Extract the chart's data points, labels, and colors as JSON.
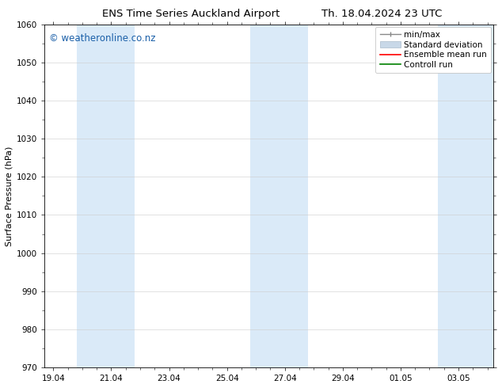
{
  "title_left": "ENS Time Series Auckland Airport",
  "title_right": "Th. 18.04.2024 23 UTC",
  "ylabel": "Surface Pressure (hPa)",
  "ylim": [
    970,
    1060
  ],
  "yticks": [
    970,
    980,
    990,
    1000,
    1010,
    1020,
    1030,
    1040,
    1050,
    1060
  ],
  "xtick_labels": [
    "19.04",
    "21.04",
    "23.04",
    "25.04",
    "27.04",
    "29.04",
    "01.05",
    "03.05"
  ],
  "xtick_positions": [
    0,
    2,
    4,
    6,
    8,
    10,
    12,
    14
  ],
  "x_min": -0.3,
  "x_max": 15.2,
  "watermark": "© weatheronline.co.nz",
  "watermark_color": "#1a5fa8",
  "bg_color": "#ffffff",
  "plot_bg_color": "#ffffff",
  "shaded_bands": [
    {
      "x_start": 0.8,
      "x_end": 2.8,
      "color": "#daeaf8"
    },
    {
      "x_start": 6.8,
      "x_end": 8.8,
      "color": "#daeaf8"
    },
    {
      "x_start": 13.3,
      "x_end": 15.2,
      "color": "#daeaf8"
    }
  ],
  "legend_items": [
    {
      "label": "min/max",
      "color": "#aaaaaa",
      "type": "minmax"
    },
    {
      "label": "Standard deviation",
      "color": "#c8d8e8",
      "type": "bar"
    },
    {
      "label": "Ensemble mean run",
      "color": "#ff0000",
      "type": "line"
    },
    {
      "label": "Controll run",
      "color": "#008000",
      "type": "line"
    }
  ],
  "title_fontsize": 9.5,
  "axis_label_fontsize": 8,
  "tick_fontsize": 7.5,
  "legend_fontsize": 7.5,
  "watermark_fontsize": 8.5
}
